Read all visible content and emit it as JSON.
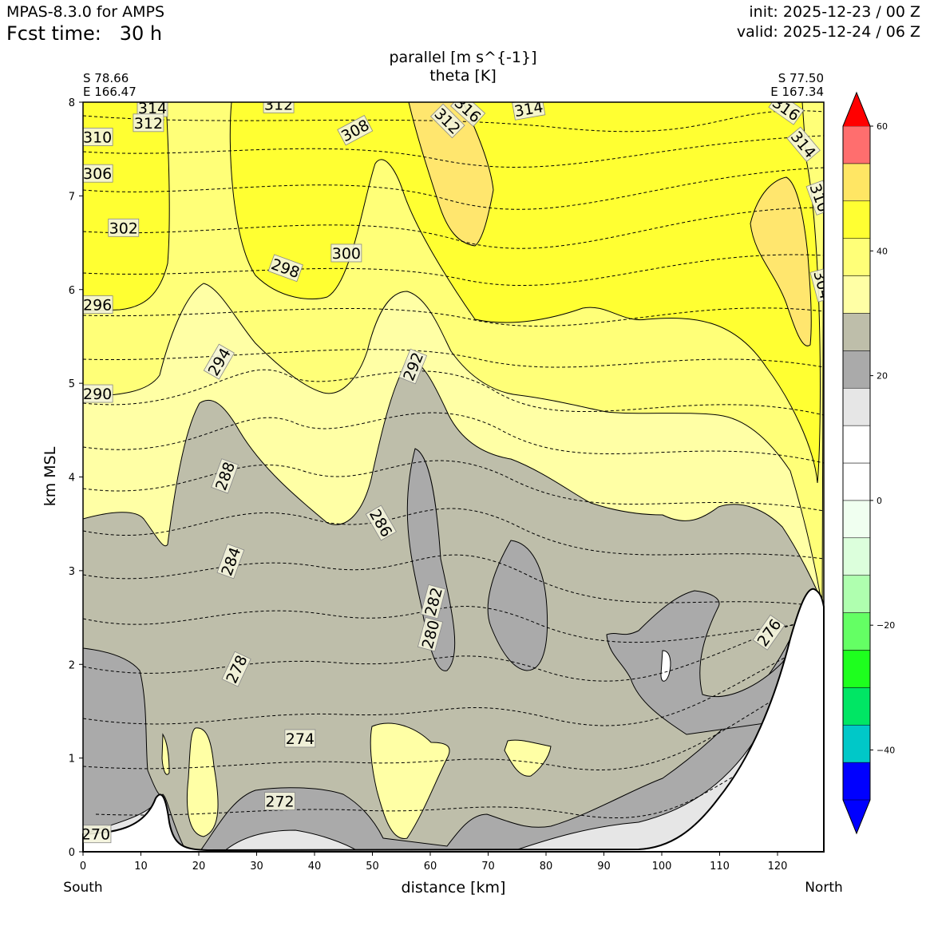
{
  "header": {
    "model": "MPAS-8.3.0 for AMPS",
    "fcst_label": "Fcst time:",
    "fcst_value": "30 h",
    "init": "init: 2025-12-23 / 00 Z",
    "valid": "valid: 2025-12-24 / 06 Z"
  },
  "chart_data": {
    "type": "contour-cross-section",
    "title_line1": "parallel [m s^{-1}]",
    "title_line2": "theta [K]",
    "xlabel": "distance [km]",
    "ylabel": "km MSL",
    "xlim": [
      0,
      128
    ],
    "ylim": [
      0,
      8
    ],
    "x_ticks": [
      0,
      10,
      20,
      30,
      40,
      50,
      60,
      70,
      80,
      90,
      100,
      110,
      120
    ],
    "y_ticks": [
      0,
      1,
      2,
      3,
      4,
      5,
      6,
      7,
      8
    ],
    "left_endpoint": {
      "lat": "S 78.66",
      "lon": "E 166.47",
      "label": "South"
    },
    "right_endpoint": {
      "lat": "S 77.50",
      "lon": "E 167.34",
      "label": "North"
    },
    "colorbar": {
      "ticks": [
        60,
        40,
        20,
        0,
        -20,
        -40
      ],
      "tick_labels": [
        "60",
        "40",
        "20",
        "0",
        "−20",
        "−40"
      ],
      "levels": [
        -48,
        -42,
        -36,
        -30,
        -24,
        -18,
        -12,
        -6,
        0,
        6,
        12,
        18,
        24,
        30,
        36,
        42,
        48,
        54,
        60
      ],
      "colors": [
        "#0000ff",
        "#0000ff",
        "#00c8c8",
        "#00e664",
        "#1eff1e",
        "#64ff64",
        "#afffaf",
        "#dcffdc",
        "#f0fff0",
        "#ffffff",
        "#ffffff",
        "#e6e6e6",
        "#aaaaaa",
        "#bebeaa",
        "#ffffa5",
        "#ffff78",
        "#ffff32",
        "#ffe664",
        "#ff6e6e",
        "#ff0000"
      ]
    },
    "theta_labels": [
      {
        "text": "314",
        "x": 12.0,
        "y": 7.94,
        "angle": 0
      },
      {
        "text": "312",
        "x": 11.3,
        "y": 7.78,
        "angle": 0
      },
      {
        "text": "310",
        "x": 2.5,
        "y": 7.63,
        "angle": 0
      },
      {
        "text": "306",
        "x": 2.5,
        "y": 7.24,
        "angle": 0
      },
      {
        "text": "302",
        "x": 7.0,
        "y": 6.66,
        "angle": 0
      },
      {
        "text": "296",
        "x": 2.5,
        "y": 5.84,
        "angle": 0
      },
      {
        "text": "290",
        "x": 2.5,
        "y": 4.89,
        "angle": 0
      },
      {
        "text": "312",
        "x": 33.8,
        "y": 7.98,
        "angle": 0
      },
      {
        "text": "308",
        "x": 47.0,
        "y": 7.7,
        "angle": -28
      },
      {
        "text": "298",
        "x": 35.0,
        "y": 6.23,
        "angle": 20
      },
      {
        "text": "300",
        "x": 45.5,
        "y": 6.39,
        "angle": 0
      },
      {
        "text": "294",
        "x": 23.5,
        "y": 5.23,
        "angle": -60
      },
      {
        "text": "292",
        "x": 57.0,
        "y": 5.18,
        "angle": -68
      },
      {
        "text": "288",
        "x": 24.5,
        "y": 4.01,
        "angle": -70
      },
      {
        "text": "286",
        "x": 51.5,
        "y": 3.51,
        "angle": 60
      },
      {
        "text": "284",
        "x": 25.5,
        "y": 3.1,
        "angle": -70
      },
      {
        "text": "282",
        "x": 60.5,
        "y": 2.67,
        "angle": -75
      },
      {
        "text": "280",
        "x": 60.0,
        "y": 2.32,
        "angle": -75
      },
      {
        "text": "278",
        "x": 26.5,
        "y": 1.95,
        "angle": -65
      },
      {
        "text": "274",
        "x": 37.5,
        "y": 1.21,
        "angle": 0
      },
      {
        "text": "272",
        "x": 34.0,
        "y": 0.54,
        "angle": 0
      },
      {
        "text": "270",
        "x": 2.2,
        "y": 0.19,
        "angle": 0
      },
      {
        "text": "312",
        "x": 63.0,
        "y": 7.8,
        "angle": 45
      },
      {
        "text": "316",
        "x": 66.5,
        "y": 7.92,
        "angle": 42
      },
      {
        "text": "314",
        "x": 77.0,
        "y": 7.93,
        "angle": -10
      },
      {
        "text": "316",
        "x": 121.5,
        "y": 7.93,
        "angle": 35
      },
      {
        "text": "314",
        "x": 124.5,
        "y": 7.55,
        "angle": 50
      },
      {
        "text": "310",
        "x": 127.3,
        "y": 6.98,
        "angle": 70
      },
      {
        "text": "304",
        "x": 127.8,
        "y": 6.05,
        "angle": 75
      },
      {
        "text": "276",
        "x": 118.5,
        "y": 2.34,
        "angle": -55
      }
    ]
  }
}
